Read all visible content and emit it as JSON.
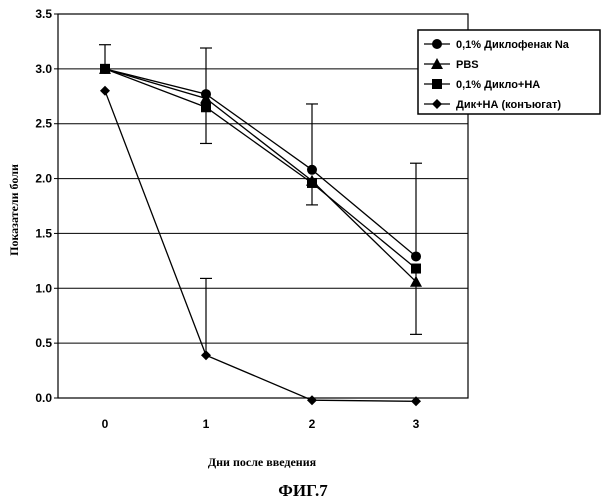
{
  "chart_data": {
    "type": "line",
    "x": [
      0,
      1,
      2,
      3
    ],
    "xlabel": "Дни после введения",
    "ylabel": "Показатели боли",
    "ylim": [
      0,
      3.5
    ],
    "yticks": [
      "0.0",
      "0.5",
      "1.0",
      "1.5",
      "2.0",
      "2.5",
      "3.0",
      "3.5"
    ],
    "xticks": [
      "0",
      "1",
      "2",
      "3"
    ],
    "grid": "horizontal",
    "legend_position": "top-right",
    "caption": "ФИГ.7",
    "series": [
      {
        "name": "0,1% Диклофенак Na",
        "marker": "circle",
        "values": [
          3.0,
          2.77,
          2.08,
          1.29
        ],
        "error_up": [
          0.22,
          0.42,
          0.6,
          0.85
        ]
      },
      {
        "name": "PBS",
        "marker": "triangle",
        "values": [
          3.0,
          2.73,
          1.98,
          1.06
        ]
      },
      {
        "name": "0,1% Дикло+НА",
        "marker": "square",
        "values": [
          3.0,
          2.65,
          1.96,
          1.18
        ],
        "error_down": [
          0,
          0.33,
          0.2,
          0.6
        ]
      },
      {
        "name": "Дик+НА (конъюгат)",
        "marker": "diamond",
        "values": [
          2.8,
          0.39,
          -0.02,
          -0.03
        ],
        "error_up": [
          0,
          0.7,
          0,
          0
        ]
      }
    ]
  }
}
